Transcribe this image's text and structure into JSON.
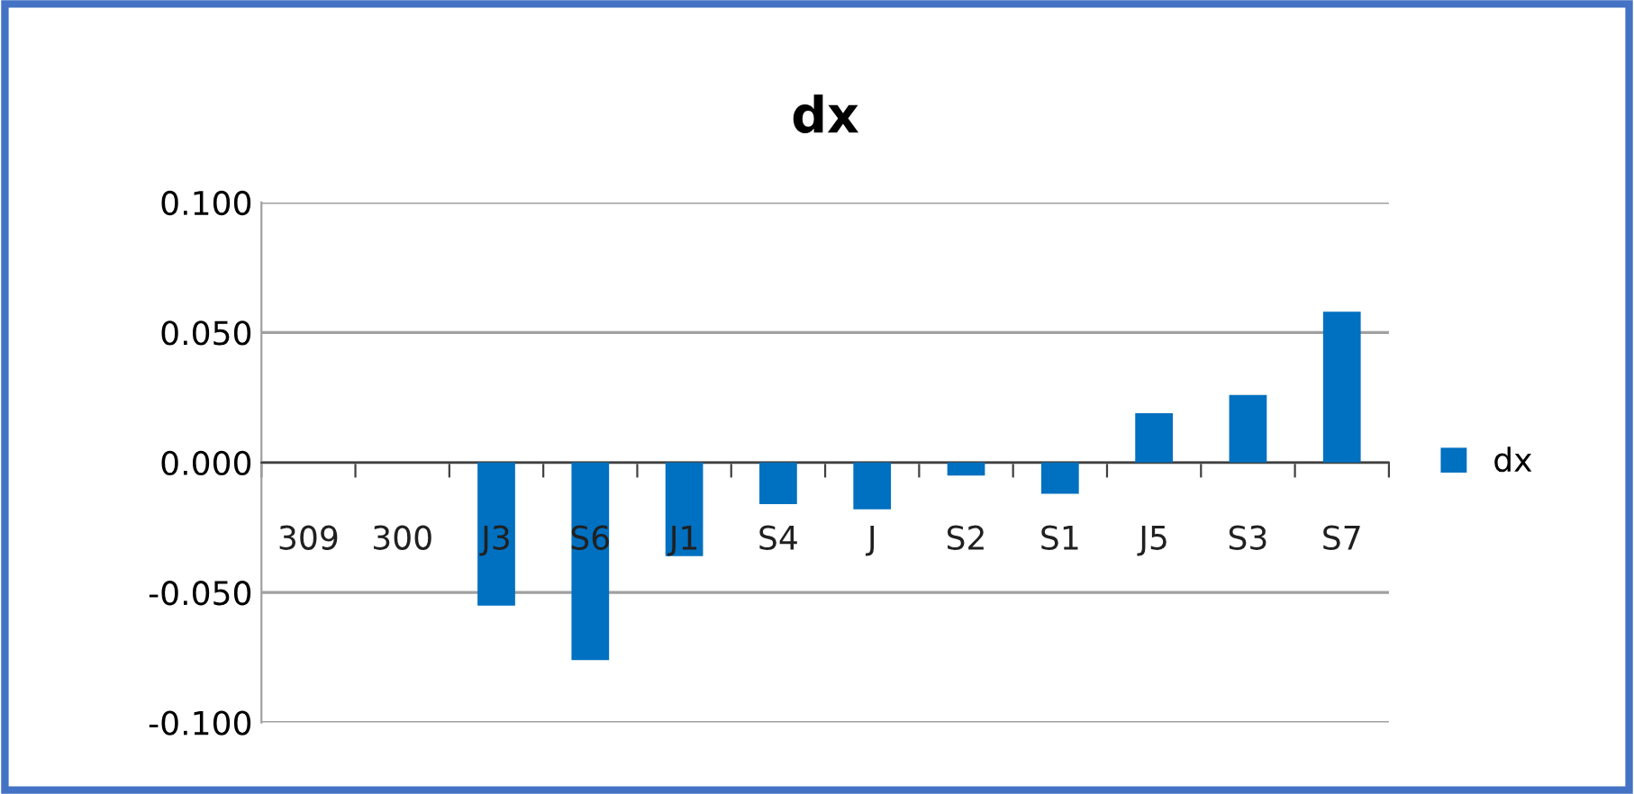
{
  "chart_data": {
    "type": "bar",
    "title": "dx",
    "categories": [
      "309",
      "300",
      "J3",
      "S6",
      "J1",
      "S4",
      "J",
      "S2",
      "S1",
      "J5",
      "S3",
      "S7"
    ],
    "series": [
      {
        "name": "dx",
        "color": "#0070c0",
        "values": [
          0,
          0,
          -0.055,
          -0.076,
          -0.036,
          -0.016,
          -0.018,
          -0.005,
          -0.012,
          0.019,
          0.026,
          0.058
        ]
      }
    ],
    "ylim": [
      -0.1,
      0.1
    ],
    "yticks": [
      {
        "value": 0.1,
        "label": "0.100"
      },
      {
        "value": 0.05,
        "label": "0.050"
      },
      {
        "value": 0,
        "label": "0.000"
      },
      {
        "value": -0.05,
        "label": "-0.050"
      },
      {
        "value": -0.1,
        "label": "-0.100"
      }
    ],
    "grid": "y",
    "legend": "right"
  }
}
